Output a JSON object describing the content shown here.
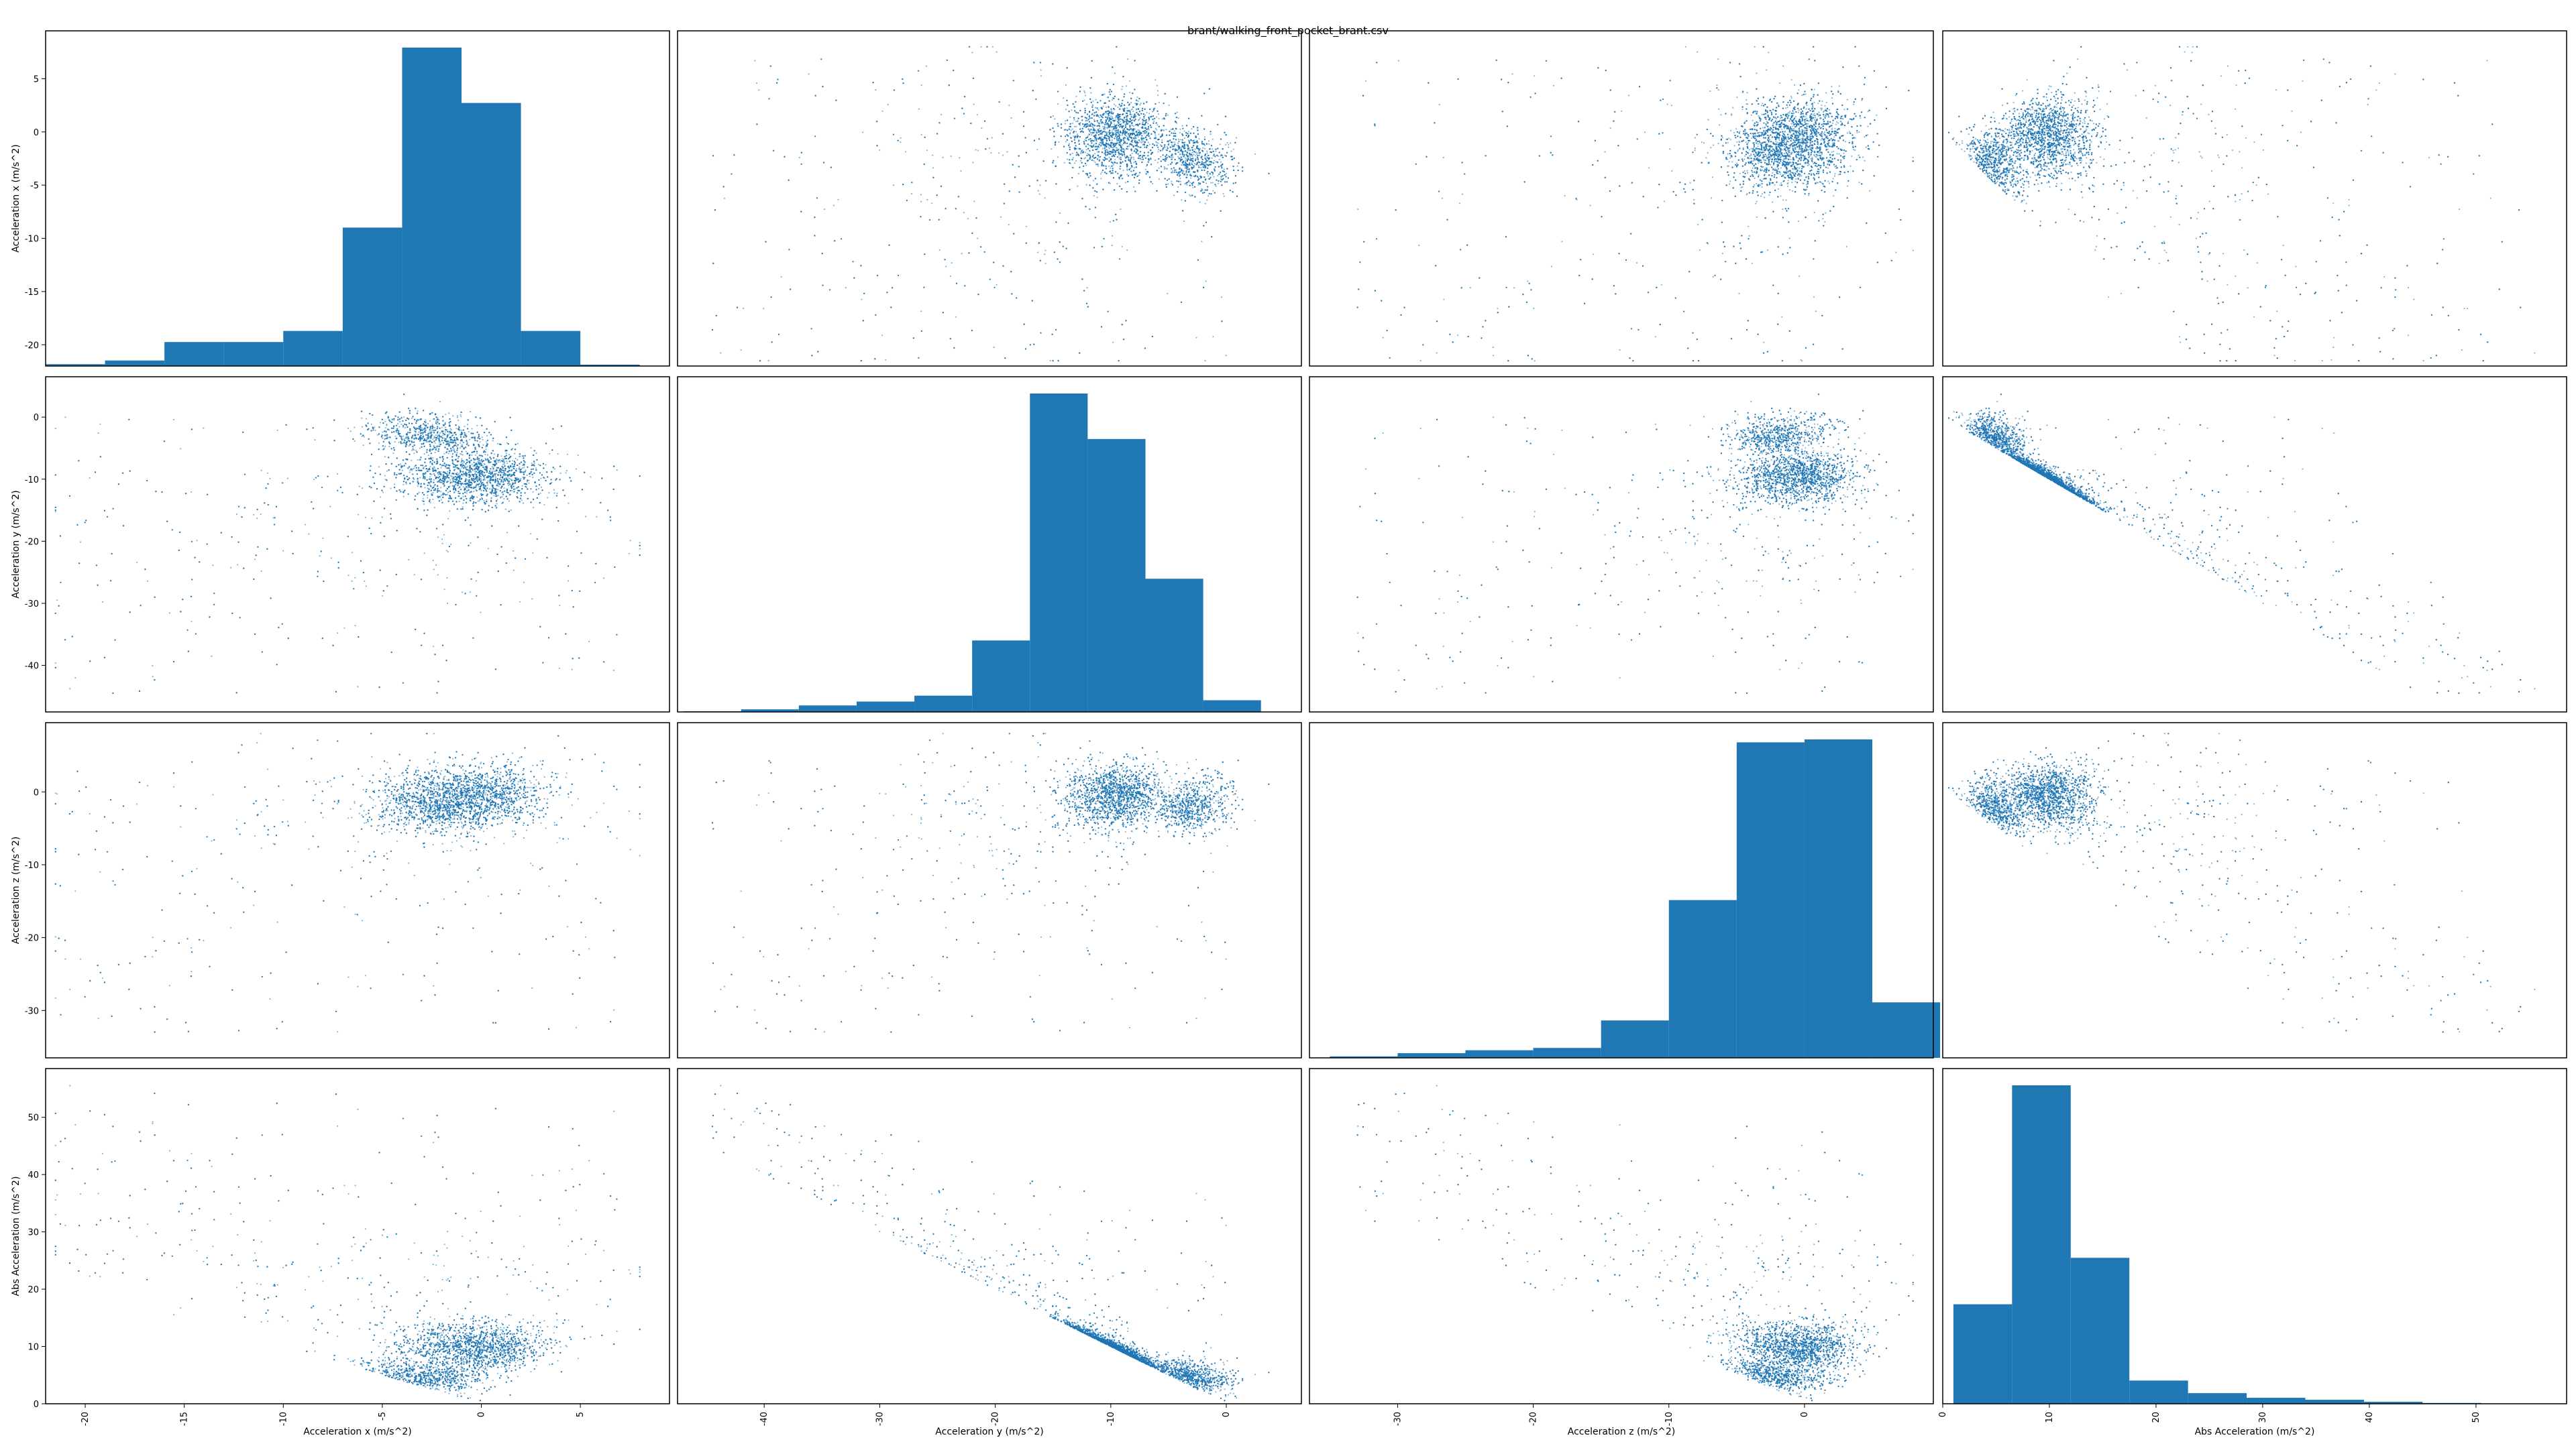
{
  "title": "brant/walking_front_pocket_brant.csv",
  "variables": [
    {
      "key": "ax",
      "label": "Acceleration x (m/s^2)",
      "ticks": [
        -20,
        -15,
        -10,
        -5,
        0,
        5
      ],
      "range": [
        -22.0,
        9.5
      ]
    },
    {
      "key": "ay",
      "label": "Acceleration y (m/s^2)",
      "ticks": [
        -40,
        -30,
        -20,
        -10,
        0
      ],
      "range": [
        -47.5,
        6.5
      ]
    },
    {
      "key": "az",
      "label": "Acceleration z (m/s^2)",
      "ticks": [
        -30,
        -20,
        -10,
        0
      ],
      "range": [
        -36.5,
        9.5
      ]
    },
    {
      "key": "abs",
      "label": "Abs Acceleration (m/s^2)",
      "ticks": [
        0,
        10,
        20,
        30,
        40,
        50
      ],
      "range": [
        0,
        58.5
      ]
    }
  ],
  "chart_data": {
    "type": "scatter",
    "subtype": "scatter-matrix",
    "title": "brant/walking_front_pocket_brant.csv",
    "point_color": "#1f77b4",
    "bar_color": "#1f77b4",
    "histograms": [
      {
        "variable": "Acceleration x (m/s^2)",
        "bin_edges": [
          -22,
          -19,
          -16,
          -13,
          -10,
          -7,
          -4,
          -1,
          2,
          5,
          8
        ],
        "counts": [
          20,
          60,
          260,
          260,
          380,
          1500,
          3450,
          2850,
          380,
          15
        ]
      },
      {
        "variable": "Acceleration y (m/s^2)",
        "bin_edges": [
          -47,
          -42,
          -37,
          -32,
          -27,
          -22,
          -17,
          -12,
          -7,
          -2,
          3
        ],
        "counts": [
          10,
          40,
          100,
          160,
          250,
          1100,
          4900,
          4200,
          2050,
          180
        ]
      },
      {
        "variable": "Acceleration z (m/s^2)",
        "bin_edges": [
          -35,
          -30,
          -25,
          -20,
          -15,
          -10,
          -5,
          0,
          5,
          10
        ],
        "counts": [
          25,
          80,
          130,
          170,
          640,
          2700,
          5400,
          5450,
          950
        ]
      },
      {
        "variable": "Abs Acceleration (m/s^2)",
        "bin_edges": [
          1,
          6.5,
          12,
          17.5,
          23,
          28.5,
          34,
          39.5,
          45,
          50.5,
          56
        ],
        "counts": [
          1500,
          4800,
          2200,
          350,
          160,
          90,
          60,
          30,
          12,
          5
        ]
      }
    ],
    "scatter_clusters": {
      "ax_ay": [
        {
          "x": 0,
          "y": -10,
          "n": 1500
        },
        {
          "x": -3,
          "y": -1,
          "n": 500
        },
        {
          "x": -2.5,
          "y": -3.5,
          "n": 400
        }
      ],
      "ax_az": [
        {
          "x": -1,
          "y": -1,
          "n": 1500
        },
        {
          "x": 1,
          "y": 2,
          "n": 700
        }
      ],
      "ay_az": [
        {
          "x": -9,
          "y": 0,
          "n": 1600
        },
        {
          "x": -3,
          "y": -2,
          "n": 500
        }
      ],
      "abs_vs_ay_line": {
        "slope": -1.0,
        "intercept": 1.5,
        "n": 1800
      }
    }
  }
}
